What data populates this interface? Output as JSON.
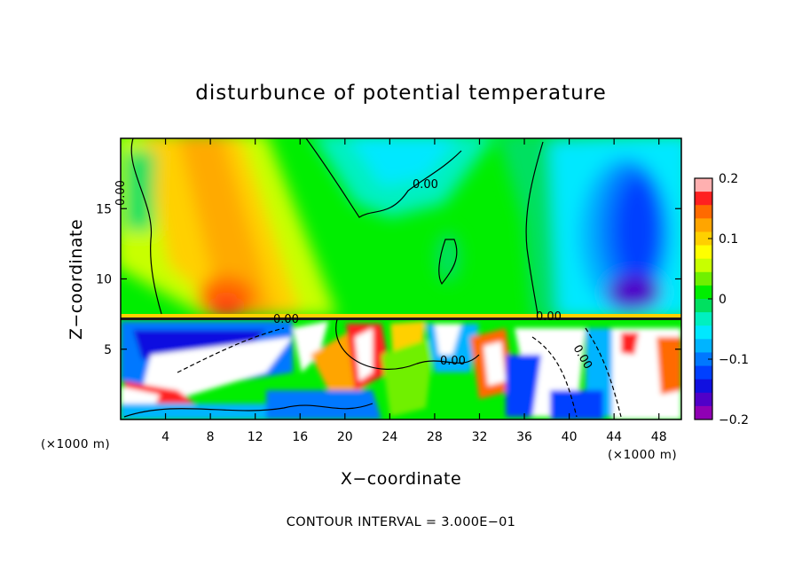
{
  "chart_data": {
    "type": "heatmap",
    "title": "disturbunce of potential temperature",
    "xlabel": "X−coordinate",
    "ylabel": "Z−coordinate",
    "x_unit_left": "(×1000 m)",
    "x_unit_right": "(×1000 m)",
    "xlim": [
      0,
      50
    ],
    "ylim": [
      0,
      20
    ],
    "x_ticks": [
      4,
      8,
      12,
      16,
      20,
      24,
      28,
      32,
      36,
      40,
      44,
      48
    ],
    "x_tick_labels": [
      "4",
      "8",
      "12",
      "16",
      "20",
      "24",
      "28",
      "32",
      "36",
      "40",
      "44",
      "48"
    ],
    "y_ticks": [
      5,
      10,
      15
    ],
    "y_tick_labels": [
      "5",
      "10",
      "15"
    ],
    "colorbar": {
      "range": [
        -0.2,
        0.2
      ],
      "ticks": [
        0.2,
        0.1,
        0,
        -0.1,
        -0.2
      ],
      "tick_labels": [
        "0.2",
        "0.1",
        "0",
        "−0.1",
        "−0.2"
      ],
      "colors": [
        "#ffb0b0",
        "#ff2020",
        "#ff6a00",
        "#ffa500",
        "#ffd000",
        "#ffff00",
        "#c8ff00",
        "#70f000",
        "#00ee00",
        "#00e060",
        "#00f0c0",
        "#00e8ff",
        "#00b4ff",
        "#0078ff",
        "#0040ff",
        "#1010e0",
        "#5000c8",
        "#9000b4"
      ]
    },
    "contour_labels": [
      "0.00",
      "0.00",
      "0.00",
      "0.00",
      "0.00",
      "0.00"
    ],
    "contour_interval_text": "CONTOUR INTERVAL = 3.000E−01",
    "grid": false
  }
}
